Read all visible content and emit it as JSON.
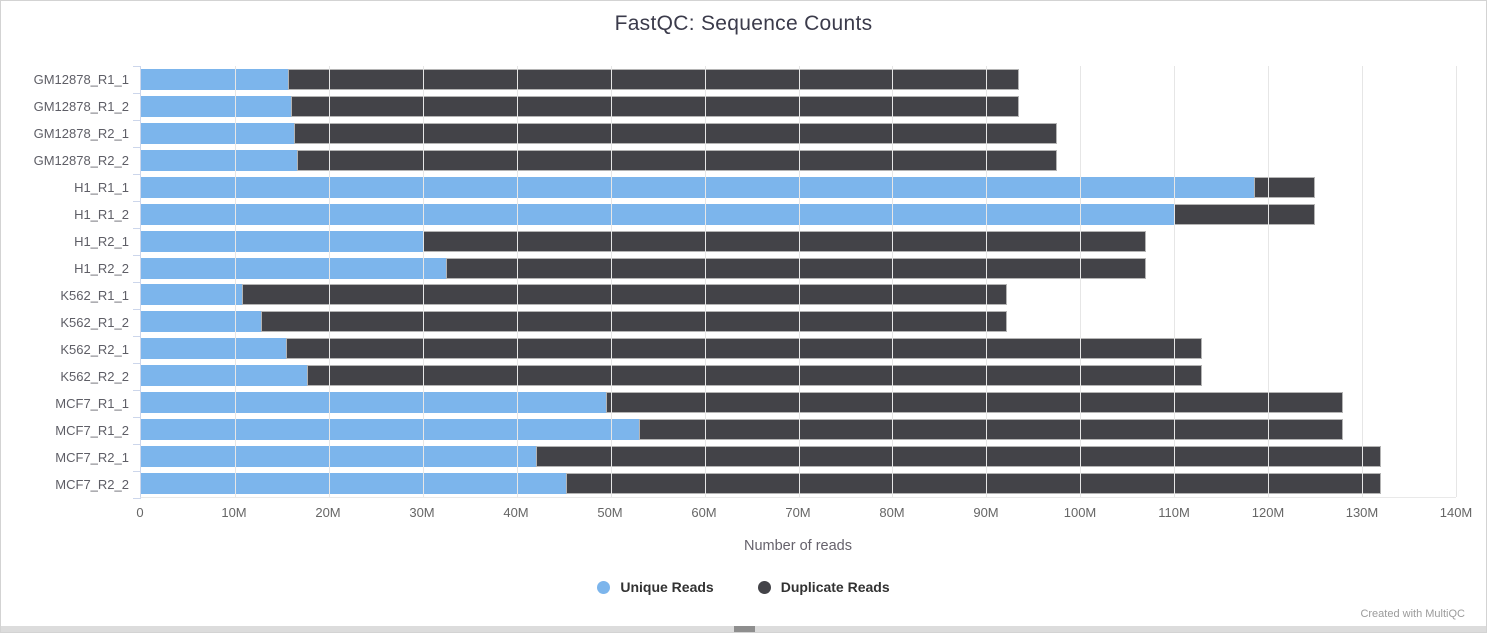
{
  "title": "FastQC: Sequence Counts",
  "watermark": "Created with MultiQC",
  "colors": {
    "unique": "#7cb5ec",
    "duplicate": "#434348",
    "gridline": "#e6e6e6",
    "axis_line": "#ccd6eb",
    "tick_text": "#666666",
    "title_text": "#3b3b4b"
  },
  "chart_data": {
    "type": "bar",
    "stacked": true,
    "orientation": "horizontal",
    "title": "FastQC: Sequence Counts",
    "xlabel": "Number of reads",
    "unit": "M",
    "xlim": [
      0,
      140
    ],
    "grid": true,
    "legend_position": "bottom",
    "x_tick_labels": [
      "0",
      "10M",
      "20M",
      "30M",
      "40M",
      "50M",
      "60M",
      "70M",
      "80M",
      "90M",
      "100M",
      "110M",
      "120M",
      "130M",
      "140M"
    ],
    "categories": [
      "GM12878_R1_1",
      "GM12878_R1_2",
      "GM12878_R2_1",
      "GM12878_R2_2",
      "H1_R1_1",
      "H1_R1_2",
      "H1_R2_1",
      "H1_R2_2",
      "K562_R1_1",
      "K562_R1_2",
      "K562_R2_1",
      "K562_R2_2",
      "MCF7_R1_1",
      "MCF7_R1_2",
      "MCF7_R2_1",
      "MCF7_R2_2"
    ],
    "series": [
      {
        "name": "Unique Reads",
        "color": "#7cb5ec",
        "values": [
          15.7,
          16.0,
          16.3,
          16.6,
          118.5,
          110.0,
          30.0,
          32.5,
          10.8,
          12.8,
          15.4,
          17.7,
          49.5,
          53.0,
          42.0,
          45.3
        ]
      },
      {
        "name": "Duplicate Reads",
        "color": "#434348",
        "values": [
          77.8,
          77.5,
          81.2,
          80.9,
          6.5,
          15.0,
          77.0,
          74.5,
          81.4,
          79.4,
          97.6,
          95.3,
          78.5,
          75.0,
          90.0,
          86.7
        ]
      }
    ],
    "stack_totals": [
      93.5,
      93.5,
      97.5,
      97.5,
      125.0,
      125.0,
      107.0,
      107.0,
      92.2,
      92.2,
      113.0,
      113.0,
      128.0,
      128.0,
      132.0,
      132.0
    ]
  }
}
